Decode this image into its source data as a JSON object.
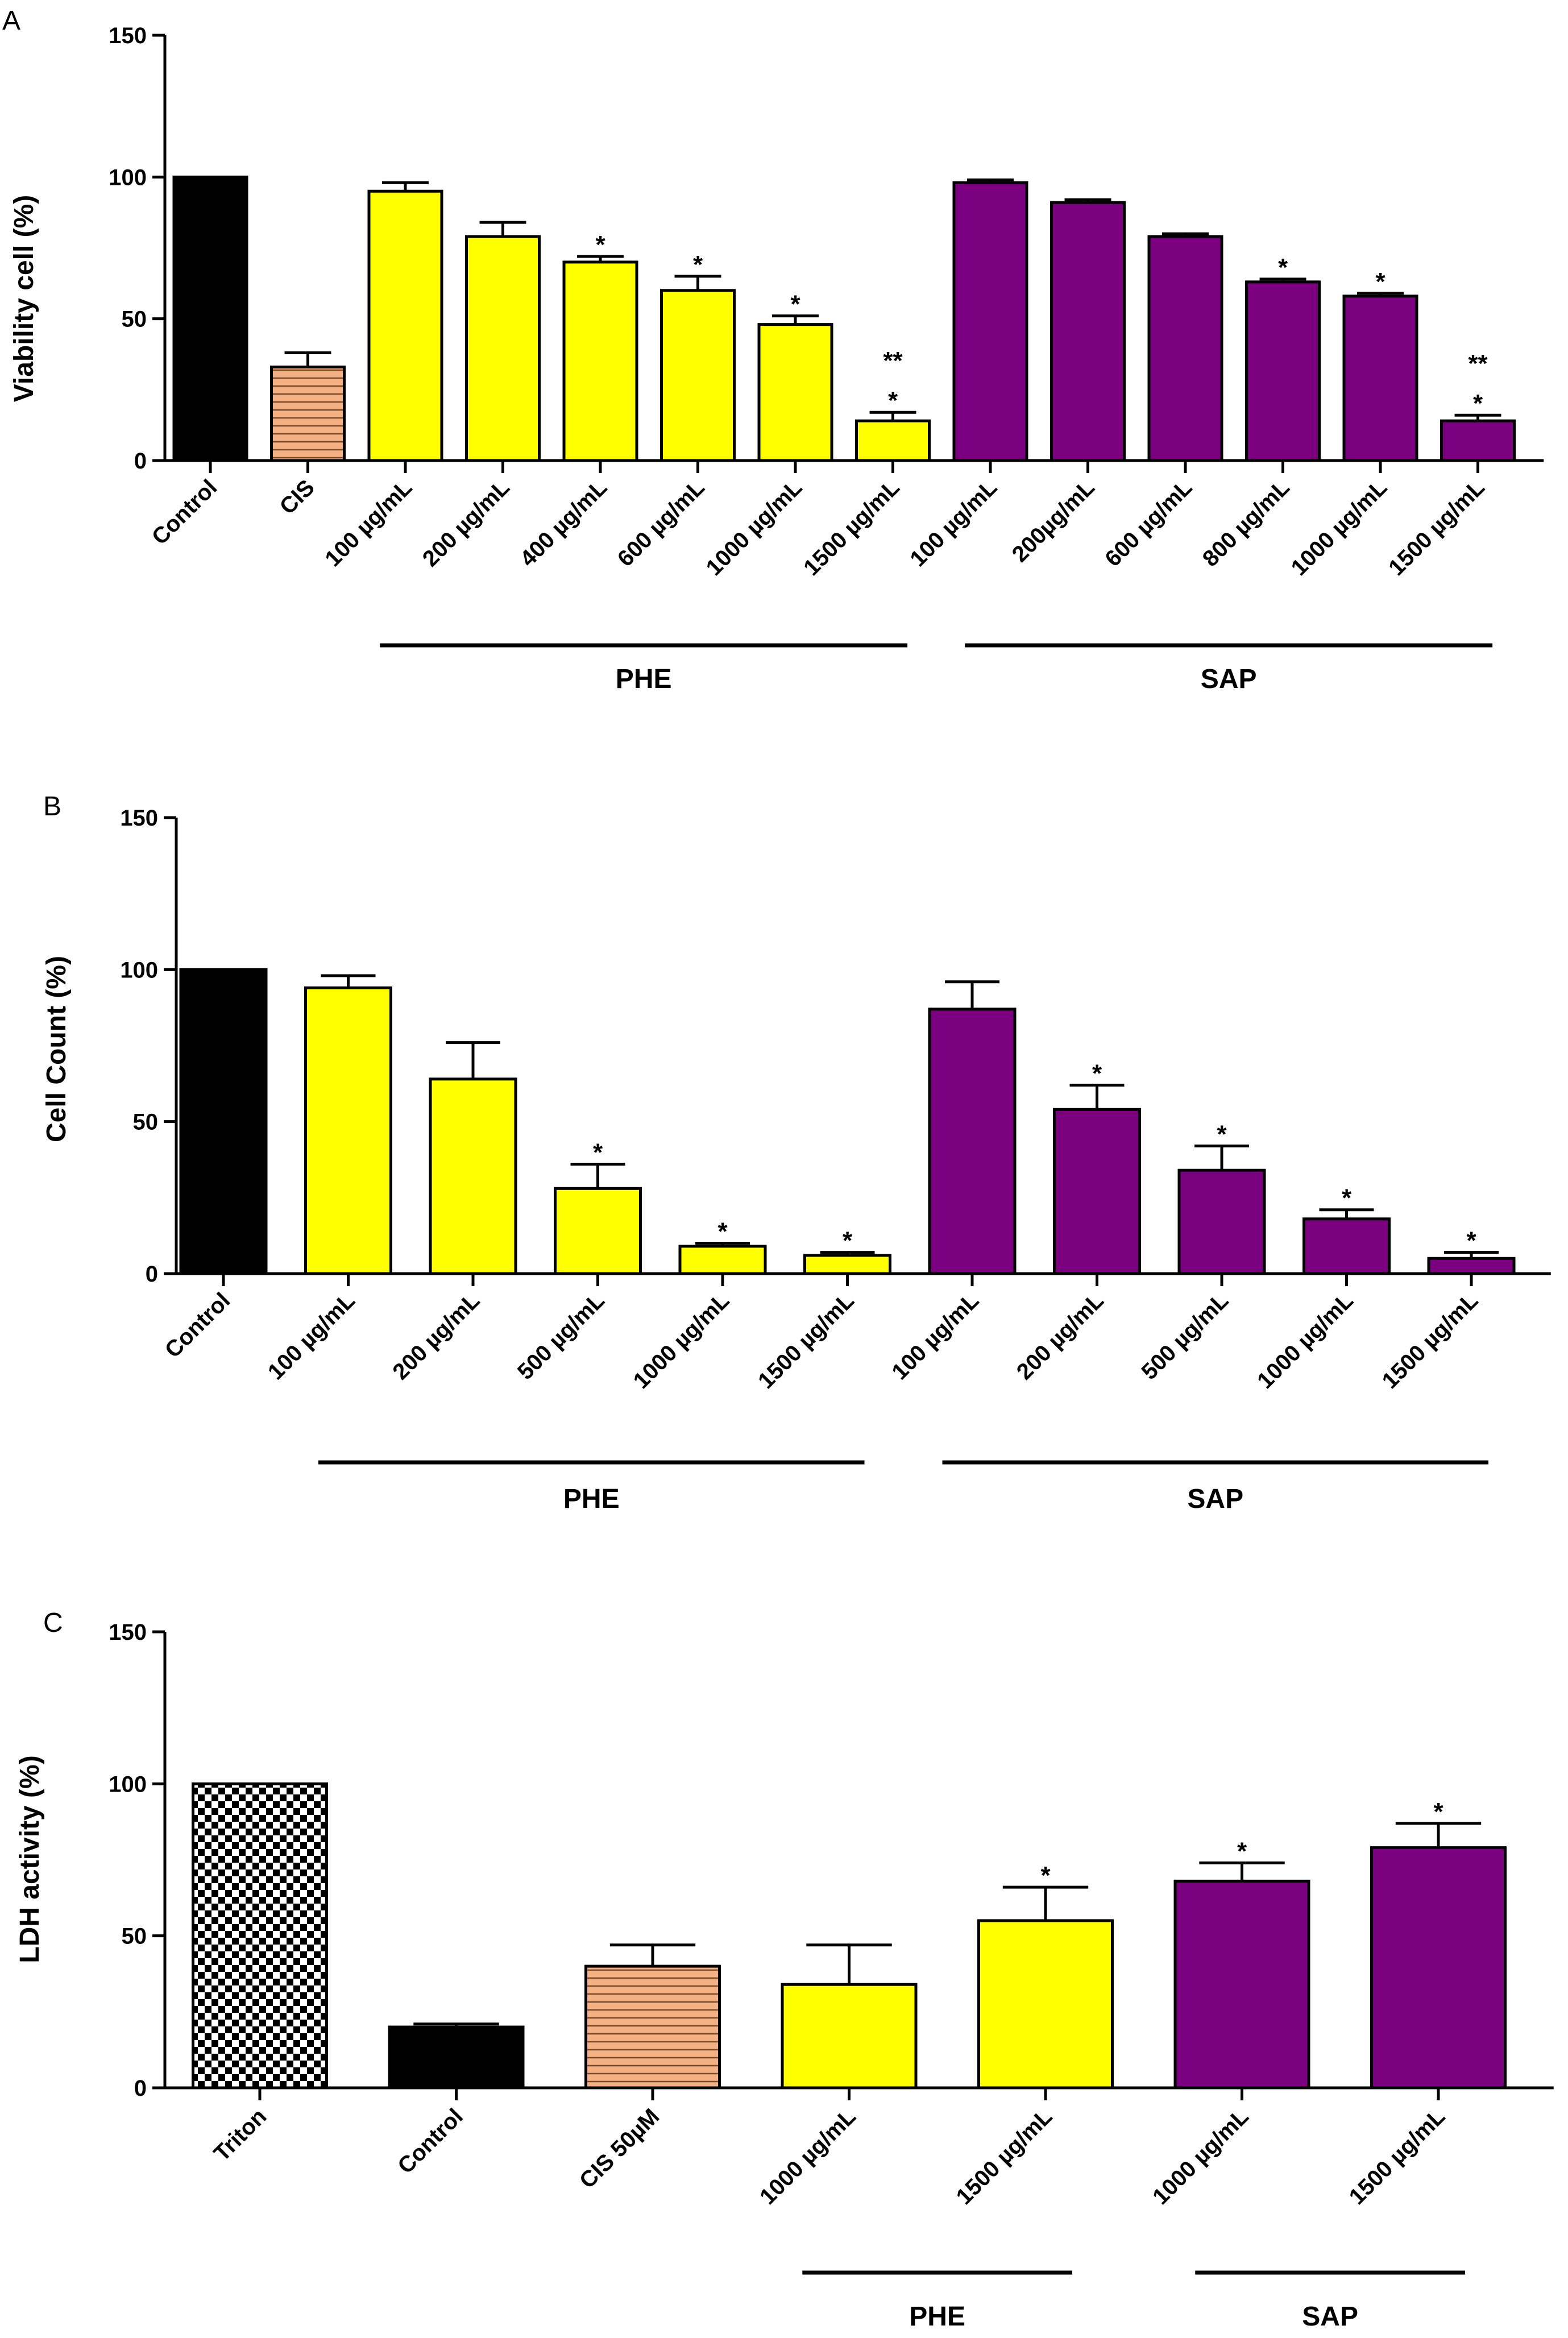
{
  "colors": {
    "control": "#000000",
    "cis": "#f4b183",
    "phe": "#ffff00",
    "sap": "#7b0080",
    "triton": "#000000"
  },
  "chart_data": [
    {
      "panel": "A",
      "type": "bar",
      "ylabel": "Viability cell (%)",
      "ylim": [
        0,
        150
      ],
      "yticks": [
        0,
        50,
        100,
        150
      ],
      "categories": [
        "Control",
        "CIS",
        "100 µg/mL",
        "200 µg/mL",
        "400 µg/mL",
        "600 µg/mL",
        "1000 µg/mL",
        "1500 µg/mL",
        "100 µg/mL",
        "200µg/mL",
        "600 µg/mL",
        "800 µg/mL",
        "1000 µg/mL",
        "1500 µg/mL"
      ],
      "values": [
        100,
        33,
        95,
        79,
        70,
        60,
        48,
        14,
        98,
        91,
        79,
        63,
        58,
        14
      ],
      "errors": [
        0,
        5,
        3,
        5,
        2,
        5,
        3,
        3,
        1,
        1,
        1,
        1,
        1,
        2
      ],
      "fills": [
        "control",
        "cis",
        "phe",
        "phe",
        "phe",
        "phe",
        "phe",
        "phe",
        "sap",
        "sap",
        "sap",
        "sap",
        "sap",
        "sap"
      ],
      "significance": [
        "",
        "",
        "",
        "",
        "*",
        "*",
        "*",
        "**\n*",
        "",
        "",
        "",
        "*",
        "*",
        "**\n*"
      ],
      "groups": [
        {
          "label": "PHE",
          "from": 2,
          "to": 7
        },
        {
          "label": "SAP",
          "from": 8,
          "to": 13
        }
      ]
    },
    {
      "panel": "B",
      "type": "bar",
      "ylabel": "Cell Count (%)",
      "ylim": [
        0,
        150
      ],
      "yticks": [
        0,
        50,
        100,
        150
      ],
      "categories": [
        "Control",
        "100 µg/mL",
        "200 µg/mL",
        "500 µg/mL",
        "1000 µg/mL",
        "1500 µg/mL",
        "100 µg/mL",
        "200 µg/mL",
        "500 µg/mL",
        "1000 µg/mL",
        "1500 µg/mL"
      ],
      "values": [
        100,
        94,
        64,
        28,
        9,
        6,
        87,
        54,
        34,
        18,
        5
      ],
      "errors": [
        0,
        4,
        12,
        8,
        1,
        1,
        9,
        8,
        8,
        3,
        2
      ],
      "fills": [
        "control",
        "phe",
        "phe",
        "phe",
        "phe",
        "phe",
        "sap",
        "sap",
        "sap",
        "sap",
        "sap"
      ],
      "significance": [
        "",
        "",
        "",
        "*",
        "*",
        "*",
        "",
        "*",
        "*",
        "*",
        "*"
      ],
      "groups": [
        {
          "label": "PHE",
          "from": 1,
          "to": 5
        },
        {
          "label": "SAP",
          "from": 6,
          "to": 10
        }
      ]
    },
    {
      "panel": "C",
      "type": "bar",
      "ylabel": "LDH activity (%)",
      "ylim": [
        0,
        150
      ],
      "yticks": [
        0,
        50,
        100,
        150
      ],
      "categories": [
        "Triton",
        "Control",
        "CIS 50µM",
        "1000 µg/mL",
        "1500 µg/mL",
        "1000 µg/mL",
        "1500 µg/mL"
      ],
      "values": [
        100,
        20,
        40,
        34,
        55,
        68,
        79
      ],
      "errors": [
        0,
        1,
        7,
        13,
        11,
        6,
        8
      ],
      "fills": [
        "triton",
        "control",
        "cis",
        "phe",
        "phe",
        "sap",
        "sap"
      ],
      "significance": [
        "",
        "",
        "",
        "",
        "*",
        "*",
        "*"
      ],
      "groups": [
        {
          "label": "PHE",
          "from": 3,
          "to": 4
        },
        {
          "label": "SAP",
          "from": 5,
          "to": 6
        }
      ]
    }
  ]
}
